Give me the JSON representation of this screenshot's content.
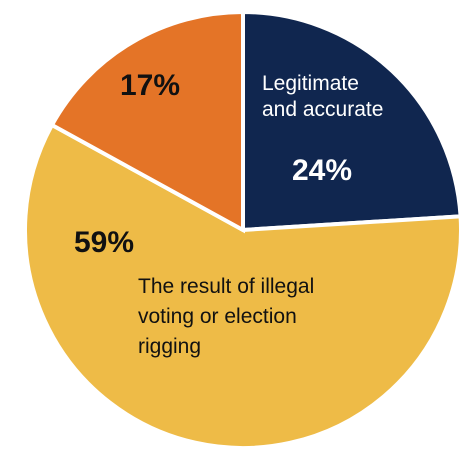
{
  "chart_data": {
    "type": "pie",
    "start": "12 o'clock, clockwise",
    "slices": [
      {
        "category": "Legitimate and accurate",
        "label_lines": [
          "Legitimate",
          "and accurate"
        ],
        "value": 24,
        "value_label": "24%",
        "color": "#10264F",
        "text_color": "#ffffff"
      },
      {
        "category": "The result of illegal voting or election rigging",
        "label_lines": [
          "The result of illegal",
          "voting or election",
          "rigging"
        ],
        "value": 59,
        "value_label": "59%",
        "color": "#EEBB47",
        "text_color": "#111111"
      },
      {
        "category": "",
        "label_lines": [],
        "value": 17,
        "value_label": "17%",
        "color": "#E47427",
        "text_color": "#111111"
      }
    ],
    "slice_border_color": "#ffffff"
  }
}
